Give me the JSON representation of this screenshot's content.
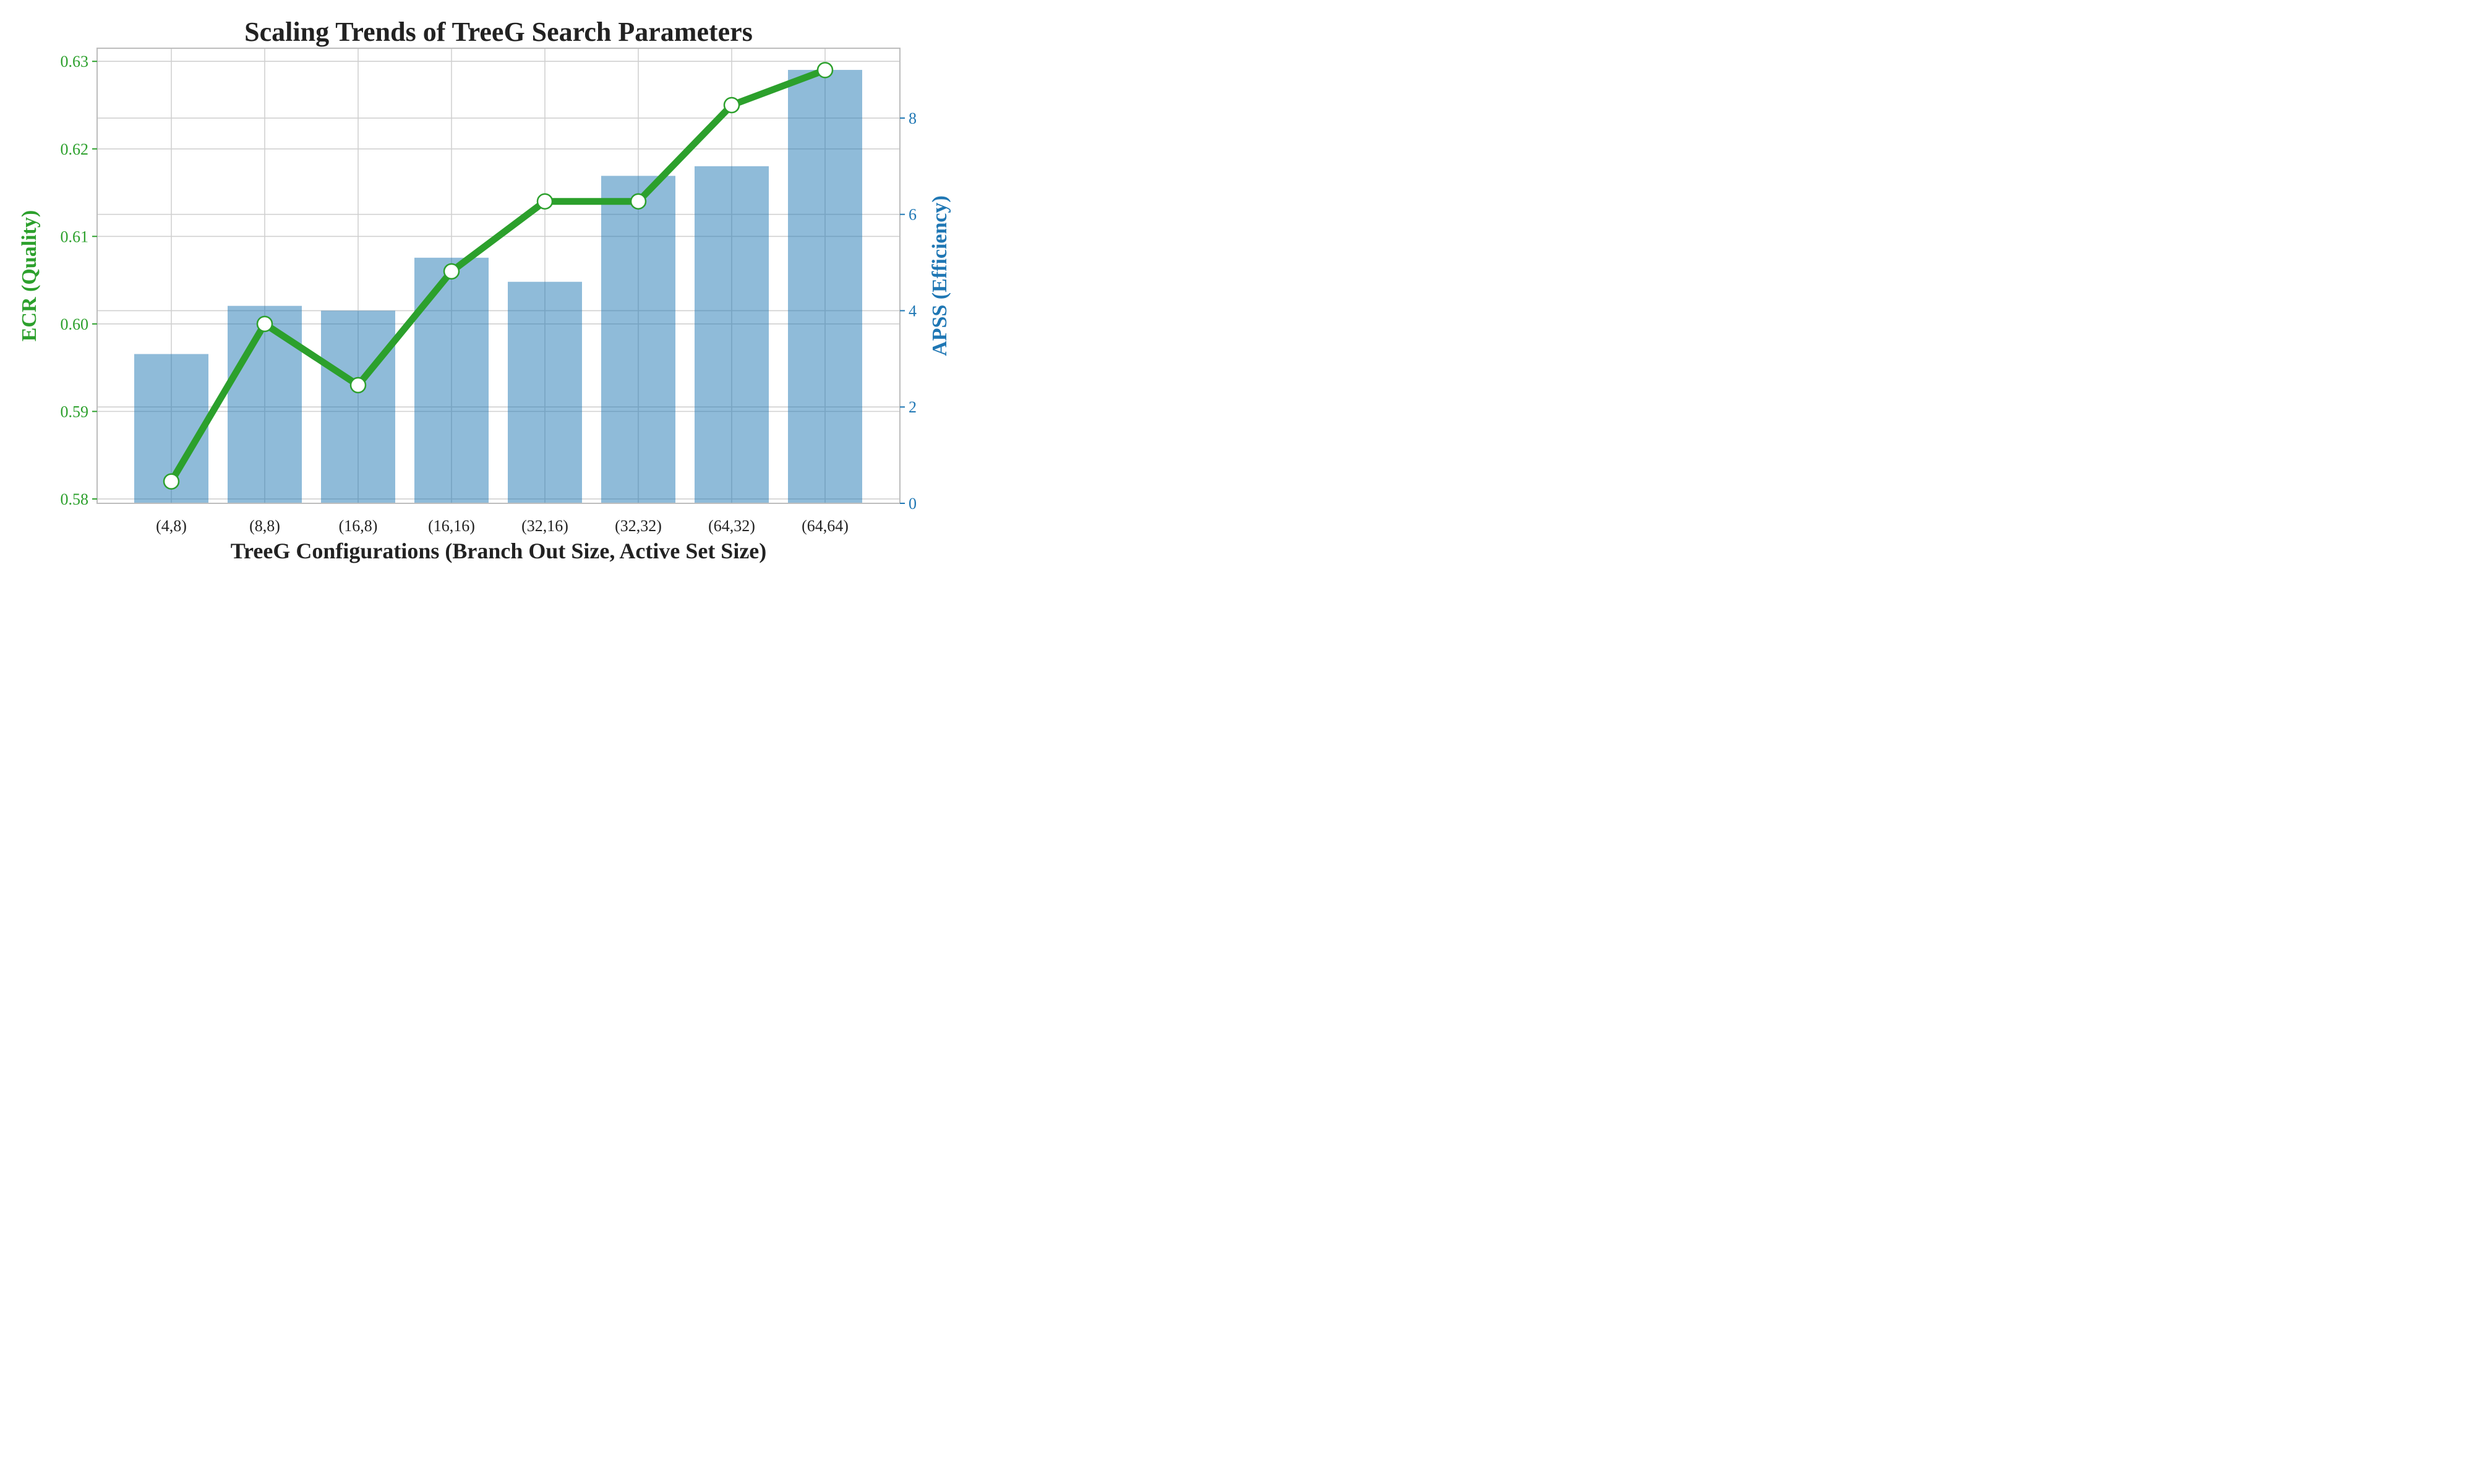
{
  "chart_data": {
    "type": "bar",
    "title": "Scaling Trends of TreeG Search Parameters",
    "xlabel": "TreeG Configurations (Branch Out Size, Active Set Size)",
    "categories": [
      "(4,8)",
      "(8,8)",
      "(16,8)",
      "(16,16)",
      "(32,16)",
      "(32,32)",
      "(64,32)",
      "(64,64)"
    ],
    "series": [
      {
        "name": "ECR (Quality)",
        "type": "line",
        "axis": "left",
        "values": [
          0.582,
          0.6,
          0.593,
          0.606,
          0.614,
          0.614,
          0.625,
          0.629
        ],
        "color": "#2ca02c"
      },
      {
        "name": "APSS (Efficiency)",
        "type": "bar",
        "axis": "right",
        "values": [
          3.1,
          4.1,
          4.0,
          5.1,
          4.6,
          6.8,
          7.0,
          9.0
        ],
        "color": "#1f77b4"
      }
    ],
    "y_left": {
      "label": "ECR (Quality)",
      "ylim": [
        0.5795,
        0.6315
      ],
      "ticks": [
        0.58,
        0.59,
        0.6,
        0.61,
        0.62,
        0.63
      ],
      "tick_labels": [
        "0.58",
        "0.59",
        "0.60",
        "0.61",
        "0.62",
        "0.63"
      ],
      "color": "#2ca02c"
    },
    "y_right": {
      "label": "APSS (Efficiency)",
      "ylim": [
        0,
        9.45
      ],
      "ticks": [
        0,
        2,
        4,
        6,
        8
      ],
      "tick_labels": [
        "0",
        "2",
        "4",
        "6",
        "8"
      ],
      "color": "#1f77b4"
    },
    "grid": true,
    "legend": "none"
  }
}
